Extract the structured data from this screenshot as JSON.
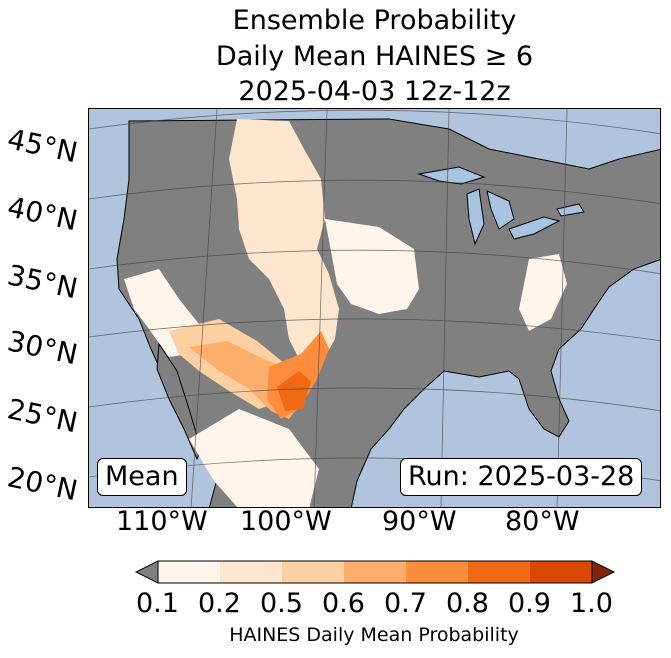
{
  "title": {
    "line1": "Ensemble Probability",
    "line2": "Daily Mean HAINES ≥ 6",
    "line3": "2025-04-03 12z-12z"
  },
  "map": {
    "latitude_labels": [
      "45°N",
      "40°N",
      "35°N",
      "30°N",
      "25°N",
      "20°N"
    ],
    "longitude_labels": [
      "110°W",
      "100°W",
      "90°W",
      "80°W"
    ],
    "stat_label": "Mean",
    "run_label": "Run: 2025-03-28",
    "colors": {
      "ocean": "#b0c4de",
      "land": "#808080",
      "borders": "#000000",
      "lakes": "#a8c4e0"
    }
  },
  "colorbar": {
    "label": "HAINES Daily Mean Probability",
    "ticks": [
      "0.1",
      "0.2",
      "0.5",
      "0.6",
      "0.7",
      "0.8",
      "0.9",
      "1.0"
    ],
    "under_color": "#808080",
    "over_color": "#7f2704",
    "bins": [
      {
        "range": "0.1-0.2",
        "color": "#fff5eb"
      },
      {
        "range": "0.2-0.5",
        "color": "#fee6ce"
      },
      {
        "range": "0.5-0.6",
        "color": "#fdd0a2"
      },
      {
        "range": "0.6-0.7",
        "color": "#fdae6b"
      },
      {
        "range": "0.7-0.8",
        "color": "#fd8d3c"
      },
      {
        "range": "0.8-0.9",
        "color": "#f16913"
      },
      {
        "range": "0.9-1.0",
        "color": "#d94801"
      }
    ]
  }
}
